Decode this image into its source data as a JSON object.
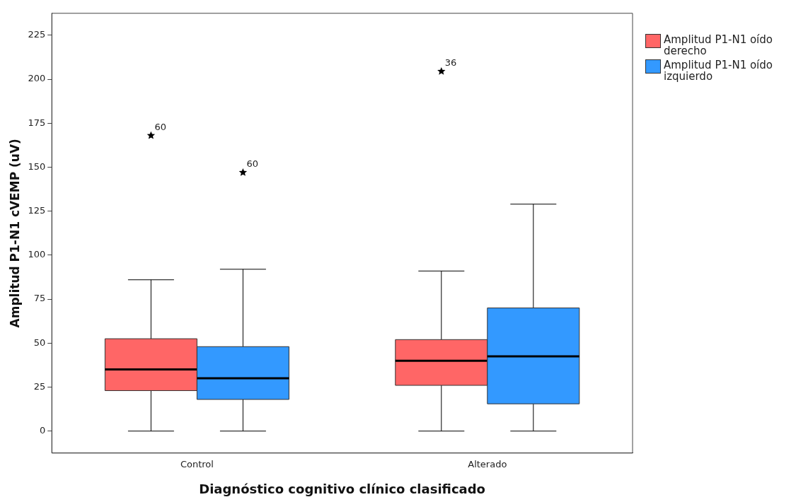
{
  "chart_data": {
    "type": "box",
    "xlabel": "Diagnóstico cognitivo clínico clasificado",
    "ylabel": "Amplitud P1-N1 cVEMP (uV)",
    "categories": [
      "Control",
      "Alterado"
    ],
    "series": [
      {
        "name": "Amplitud P1-N1 oído derecho",
        "color": "#ff6666",
        "boxes": [
          {
            "low": 0,
            "q1": 23,
            "median": 35,
            "q3": 52.5,
            "high": 86,
            "outliers": [
              168
            ]
          },
          {
            "low": 0,
            "q1": 26,
            "median": 40,
            "q3": 52,
            "high": 91,
            "outliers": [
              204.5
            ]
          }
        ]
      },
      {
        "name": "Amplitud P1-N1 oído izquierdo",
        "color": "#3399ff",
        "boxes": [
          {
            "low": 0,
            "q1": 18,
            "median": 30,
            "q3": 48,
            "high": 92,
            "outliers": [
              147
            ]
          },
          {
            "low": 0,
            "q1": 15.5,
            "median": 42.5,
            "q3": 70,
            "high": 129
          }
        ]
      }
    ],
    "ylim": [
      -12.5,
      237.5
    ],
    "yticks": [
      0,
      25,
      50,
      75,
      100,
      125,
      150,
      175,
      200,
      225
    ],
    "grid": false,
    "legend": "right",
    "marker": "star",
    "annotations": [
      "60",
      "60",
      "36"
    ]
  }
}
